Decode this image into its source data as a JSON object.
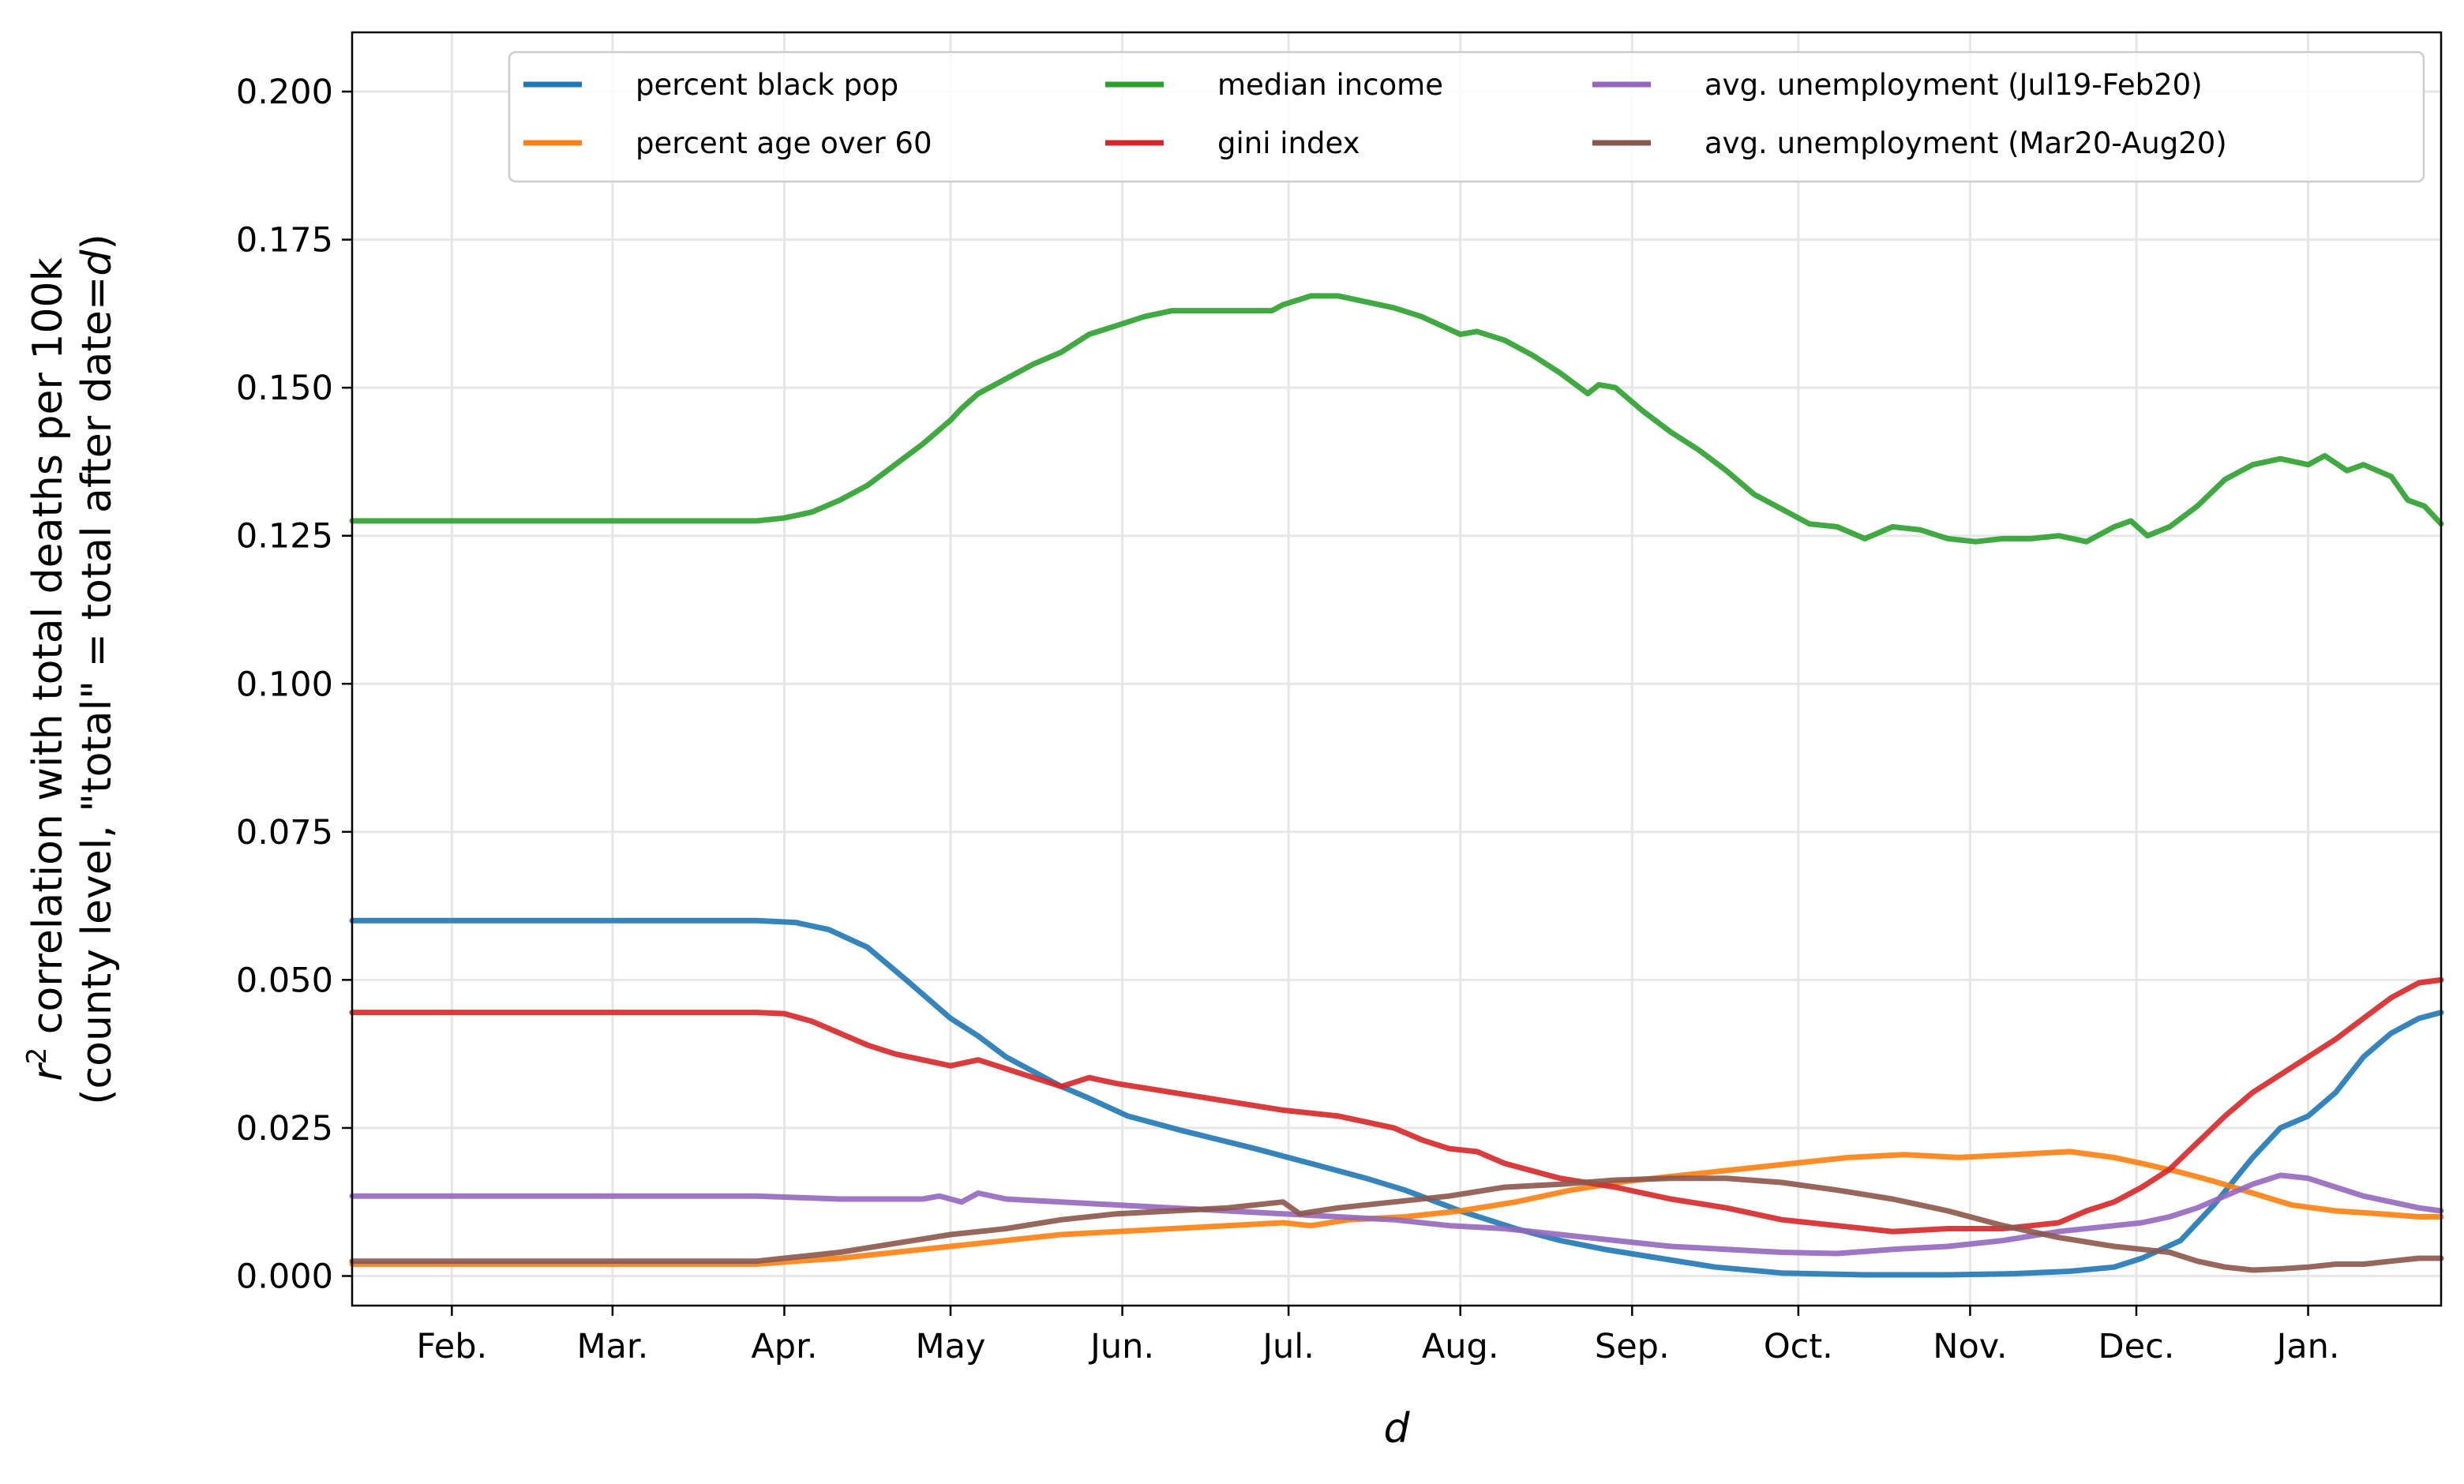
{
  "chart_data": {
    "type": "line",
    "title": "",
    "xlabel": "d",
    "ylabel_line1_parts": [
      "r",
      "2",
      " correlation with total deaths per 100k"
    ],
    "ylabel_line2_parts": [
      "(county level, \"total\" = total after date=",
      "d",
      ")"
    ],
    "ylim": [
      -0.005,
      0.21
    ],
    "yticks": [
      "0.000",
      "0.025",
      "0.050",
      "0.075",
      "0.100",
      "0.125",
      "0.150",
      "0.175",
      "0.200"
    ],
    "ytick_values": [
      0,
      0.025,
      0.05,
      0.075,
      0.1,
      0.125,
      0.15,
      0.175,
      0.2
    ],
    "xlim": [
      -18,
      359
    ],
    "xticks": [
      "Feb.",
      "Mar.",
      "Apr.",
      "May",
      "Jun.",
      "Jul.",
      "Aug.",
      "Sep.",
      "Oct.",
      "Nov.",
      "Dec.",
      "Jan."
    ],
    "xtick_days": [
      0,
      29,
      60,
      90,
      121,
      151,
      182,
      213,
      243,
      274,
      304,
      335
    ],
    "x_unit": "days after Feb. 1",
    "grid": true,
    "legend_position": "top-right",
    "legend_columns": 3,
    "series": [
      {
        "name": "percent black pop",
        "color": "#1f77b4",
        "points": [
          [
            -18,
            0.06
          ],
          [
            55,
            0.06
          ],
          [
            62,
            0.0597
          ],
          [
            68,
            0.0585
          ],
          [
            75,
            0.0555
          ],
          [
            82,
            0.05
          ],
          [
            90,
            0.0435
          ],
          [
            95,
            0.0405
          ],
          [
            100,
            0.037
          ],
          [
            110,
            0.032
          ],
          [
            115,
            0.03
          ],
          [
            122,
            0.027
          ],
          [
            132,
            0.0245
          ],
          [
            145,
            0.0215
          ],
          [
            155,
            0.019
          ],
          [
            165,
            0.0165
          ],
          [
            172,
            0.0145
          ],
          [
            182,
            0.011
          ],
          [
            192,
            0.008
          ],
          [
            200,
            0.006
          ],
          [
            208,
            0.0045
          ],
          [
            218,
            0.003
          ],
          [
            228,
            0.0015
          ],
          [
            240,
            0.0005
          ],
          [
            255,
            0.0002
          ],
          [
            270,
            0.0002
          ],
          [
            282,
            0.0004
          ],
          [
            292,
            0.0008
          ],
          [
            300,
            0.0015
          ],
          [
            305,
            0.003
          ],
          [
            312,
            0.006
          ],
          [
            318,
            0.012
          ],
          [
            325,
            0.02
          ],
          [
            330,
            0.025
          ],
          [
            335,
            0.027
          ],
          [
            340,
            0.031
          ],
          [
            345,
            0.037
          ],
          [
            350,
            0.041
          ],
          [
            355,
            0.0435
          ],
          [
            359,
            0.0445
          ]
        ]
      },
      {
        "name": "percent age over 60",
        "color": "#ff7f0e",
        "points": [
          [
            -18,
            0.002
          ],
          [
            55,
            0.002
          ],
          [
            62,
            0.0025
          ],
          [
            70,
            0.003
          ],
          [
            80,
            0.004
          ],
          [
            90,
            0.005
          ],
          [
            100,
            0.006
          ],
          [
            110,
            0.007
          ],
          [
            120,
            0.0075
          ],
          [
            130,
            0.008
          ],
          [
            140,
            0.0085
          ],
          [
            150,
            0.009
          ],
          [
            155,
            0.0085
          ],
          [
            162,
            0.0095
          ],
          [
            172,
            0.01
          ],
          [
            182,
            0.011
          ],
          [
            192,
            0.0125
          ],
          [
            202,
            0.0145
          ],
          [
            212,
            0.016
          ],
          [
            222,
            0.017
          ],
          [
            232,
            0.018
          ],
          [
            242,
            0.019
          ],
          [
            252,
            0.02
          ],
          [
            262,
            0.0205
          ],
          [
            272,
            0.02
          ],
          [
            282,
            0.0205
          ],
          [
            292,
            0.021
          ],
          [
            300,
            0.02
          ],
          [
            305,
            0.019
          ],
          [
            312,
            0.0175
          ],
          [
            318,
            0.016
          ],
          [
            325,
            0.014
          ],
          [
            332,
            0.012
          ],
          [
            340,
            0.011
          ],
          [
            348,
            0.0105
          ],
          [
            355,
            0.01
          ],
          [
            359,
            0.01
          ]
        ]
      },
      {
        "name": "median income",
        "color": "#2ca02c",
        "points": [
          [
            -18,
            0.1275
          ],
          [
            55,
            0.1275
          ],
          [
            60,
            0.128
          ],
          [
            65,
            0.129
          ],
          [
            70,
            0.131
          ],
          [
            75,
            0.1335
          ],
          [
            80,
            0.137
          ],
          [
            85,
            0.1405
          ],
          [
            90,
            0.1445
          ],
          [
            92,
            0.1465
          ],
          [
            95,
            0.149
          ],
          [
            100,
            0.1515
          ],
          [
            105,
            0.154
          ],
          [
            110,
            0.156
          ],
          [
            115,
            0.159
          ],
          [
            120,
            0.1605
          ],
          [
            125,
            0.162
          ],
          [
            130,
            0.163
          ],
          [
            140,
            0.163
          ],
          [
            148,
            0.163
          ],
          [
            150,
            0.164
          ],
          [
            155,
            0.1655
          ],
          [
            160,
            0.1655
          ],
          [
            165,
            0.1645
          ],
          [
            170,
            0.1635
          ],
          [
            175,
            0.162
          ],
          [
            182,
            0.159
          ],
          [
            185,
            0.1595
          ],
          [
            190,
            0.158
          ],
          [
            195,
            0.1555
          ],
          [
            200,
            0.1525
          ],
          [
            205,
            0.149
          ],
          [
            207,
            0.1505
          ],
          [
            210,
            0.15
          ],
          [
            215,
            0.146
          ],
          [
            220,
            0.1425
          ],
          [
            225,
            0.1395
          ],
          [
            230,
            0.136
          ],
          [
            235,
            0.132
          ],
          [
            240,
            0.1295
          ],
          [
            245,
            0.127
          ],
          [
            250,
            0.1265
          ],
          [
            255,
            0.1245
          ],
          [
            260,
            0.1265
          ],
          [
            265,
            0.126
          ],
          [
            270,
            0.1245
          ],
          [
            275,
            0.124
          ],
          [
            280,
            0.1245
          ],
          [
            285,
            0.1245
          ],
          [
            290,
            0.125
          ],
          [
            295,
            0.124
          ],
          [
            300,
            0.1265
          ],
          [
            303,
            0.1275
          ],
          [
            306,
            0.125
          ],
          [
            310,
            0.1265
          ],
          [
            315,
            0.13
          ],
          [
            320,
            0.1345
          ],
          [
            325,
            0.137
          ],
          [
            330,
            0.138
          ],
          [
            335,
            0.137
          ],
          [
            338,
            0.1385
          ],
          [
            342,
            0.136
          ],
          [
            345,
            0.137
          ],
          [
            350,
            0.135
          ],
          [
            353,
            0.131
          ],
          [
            356,
            0.13
          ],
          [
            359,
            0.127
          ]
        ]
      },
      {
        "name": "gini index",
        "color": "#d62728",
        "points": [
          [
            -18,
            0.0445
          ],
          [
            55,
            0.0445
          ],
          [
            60,
            0.0443
          ],
          [
            65,
            0.043
          ],
          [
            70,
            0.041
          ],
          [
            75,
            0.039
          ],
          [
            80,
            0.0375
          ],
          [
            85,
            0.0365
          ],
          [
            90,
            0.0355
          ],
          [
            95,
            0.0365
          ],
          [
            100,
            0.035
          ],
          [
            105,
            0.0335
          ],
          [
            110,
            0.032
          ],
          [
            115,
            0.0335
          ],
          [
            120,
            0.0325
          ],
          [
            130,
            0.031
          ],
          [
            140,
            0.0295
          ],
          [
            150,
            0.028
          ],
          [
            160,
            0.027
          ],
          [
            170,
            0.025
          ],
          [
            175,
            0.023
          ],
          [
            180,
            0.0215
          ],
          [
            185,
            0.021
          ],
          [
            190,
            0.019
          ],
          [
            200,
            0.0165
          ],
          [
            210,
            0.015
          ],
          [
            220,
            0.013
          ],
          [
            230,
            0.0115
          ],
          [
            240,
            0.0095
          ],
          [
            250,
            0.0085
          ],
          [
            260,
            0.0075
          ],
          [
            270,
            0.008
          ],
          [
            280,
            0.008
          ],
          [
            290,
            0.009
          ],
          [
            295,
            0.011
          ],
          [
            300,
            0.0125
          ],
          [
            305,
            0.015
          ],
          [
            310,
            0.018
          ],
          [
            315,
            0.0225
          ],
          [
            320,
            0.027
          ],
          [
            325,
            0.031
          ],
          [
            330,
            0.034
          ],
          [
            335,
            0.037
          ],
          [
            340,
            0.04
          ],
          [
            345,
            0.0435
          ],
          [
            350,
            0.047
          ],
          [
            355,
            0.0495
          ],
          [
            359,
            0.05
          ]
        ]
      },
      {
        "name": "avg. unemployment (Jul19-Feb20)",
        "color": "#9467bd",
        "points": [
          [
            -18,
            0.0135
          ],
          [
            55,
            0.0135
          ],
          [
            70,
            0.013
          ],
          [
            85,
            0.013
          ],
          [
            88,
            0.0135
          ],
          [
            92,
            0.0125
          ],
          [
            95,
            0.014
          ],
          [
            100,
            0.013
          ],
          [
            110,
            0.0125
          ],
          [
            120,
            0.012
          ],
          [
            130,
            0.0115
          ],
          [
            140,
            0.011
          ],
          [
            150,
            0.0105
          ],
          [
            160,
            0.01
          ],
          [
            170,
            0.0095
          ],
          [
            180,
            0.0085
          ],
          [
            190,
            0.008
          ],
          [
            200,
            0.007
          ],
          [
            210,
            0.006
          ],
          [
            220,
            0.005
          ],
          [
            230,
            0.0045
          ],
          [
            240,
            0.004
          ],
          [
            250,
            0.0038
          ],
          [
            260,
            0.0045
          ],
          [
            270,
            0.005
          ],
          [
            280,
            0.006
          ],
          [
            290,
            0.0075
          ],
          [
            300,
            0.0085
          ],
          [
            305,
            0.009
          ],
          [
            310,
            0.01
          ],
          [
            315,
            0.0115
          ],
          [
            320,
            0.0135
          ],
          [
            325,
            0.0155
          ],
          [
            330,
            0.017
          ],
          [
            335,
            0.0165
          ],
          [
            340,
            0.015
          ],
          [
            345,
            0.0135
          ],
          [
            350,
            0.0125
          ],
          [
            355,
            0.0115
          ],
          [
            359,
            0.011
          ]
        ]
      },
      {
        "name": "avg. unemployment (Mar20-Aug20)",
        "color": "#8c564b",
        "points": [
          [
            -18,
            0.0025
          ],
          [
            55,
            0.0025
          ],
          [
            60,
            0.003
          ],
          [
            70,
            0.004
          ],
          [
            80,
            0.0055
          ],
          [
            90,
            0.007
          ],
          [
            100,
            0.008
          ],
          [
            110,
            0.0095
          ],
          [
            120,
            0.0105
          ],
          [
            130,
            0.011
          ],
          [
            140,
            0.0115
          ],
          [
            150,
            0.0125
          ],
          [
            153,
            0.0105
          ],
          [
            160,
            0.0115
          ],
          [
            170,
            0.0125
          ],
          [
            180,
            0.0135
          ],
          [
            190,
            0.015
          ],
          [
            200,
            0.0155
          ],
          [
            210,
            0.0162
          ],
          [
            220,
            0.0165
          ],
          [
            230,
            0.0165
          ],
          [
            240,
            0.0158
          ],
          [
            250,
            0.0145
          ],
          [
            260,
            0.013
          ],
          [
            270,
            0.011
          ],
          [
            280,
            0.0085
          ],
          [
            290,
            0.0065
          ],
          [
            300,
            0.005
          ],
          [
            305,
            0.0045
          ],
          [
            310,
            0.004
          ],
          [
            315,
            0.0025
          ],
          [
            320,
            0.0015
          ],
          [
            325,
            0.001
          ],
          [
            330,
            0.0012
          ],
          [
            335,
            0.0015
          ],
          [
            340,
            0.002
          ],
          [
            345,
            0.002
          ],
          [
            350,
            0.0025
          ],
          [
            355,
            0.003
          ],
          [
            359,
            0.003
          ]
        ]
      }
    ]
  }
}
